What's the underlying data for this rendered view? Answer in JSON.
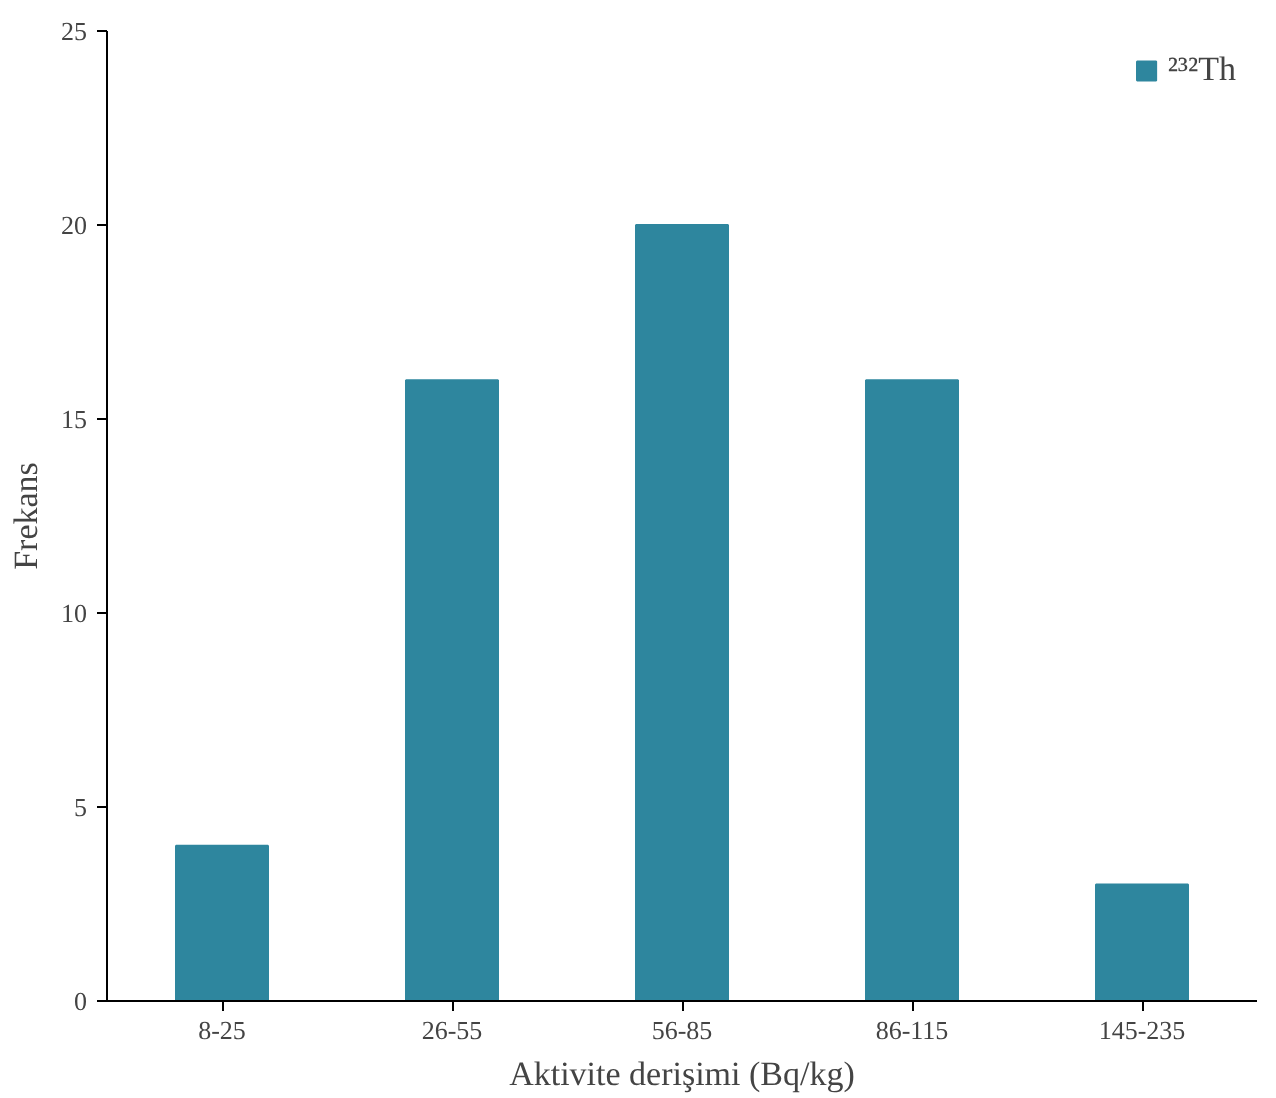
{
  "chart_data": {
    "type": "bar",
    "xlabel": "Aktivite derişimi (Bq/kg)",
    "ylabel": "Frekans",
    "categories": [
      "8-25",
      "26-55",
      "56-85",
      "86-115",
      "145-235"
    ],
    "series": [
      {
        "name": "²³²Th",
        "color": "#2e869e",
        "values": [
          4,
          16,
          20,
          16,
          3
        ]
      }
    ],
    "ylim": [
      0,
      25
    ],
    "yticks": [
      0,
      5,
      10,
      15,
      20,
      25
    ],
    "grid": false,
    "legend": "top right"
  }
}
